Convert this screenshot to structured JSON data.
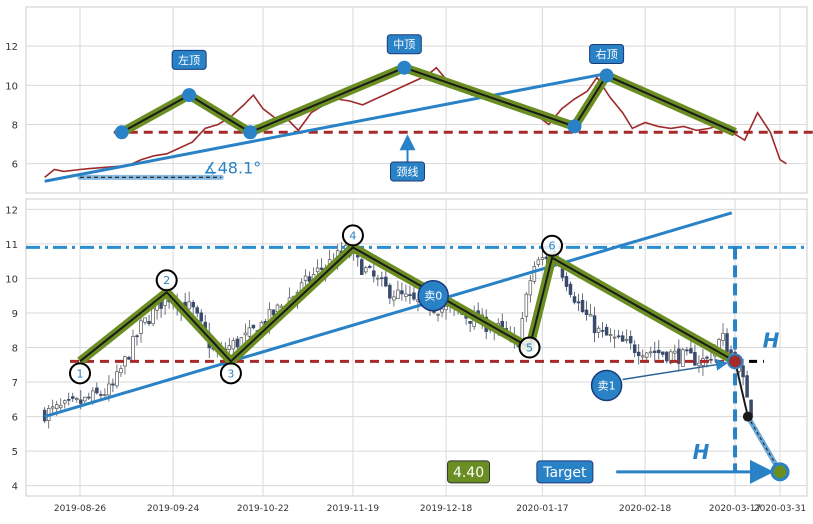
{
  "chart_data": [
    {
      "type": "line",
      "ylim": [
        4.5,
        14
      ],
      "yticks": [
        6,
        8,
        10,
        12
      ],
      "grid": true,
      "close_series": [
        [
          "2019-08-15",
          5.3
        ],
        [
          "2019-08-18",
          5.7
        ],
        [
          "2019-08-21",
          5.6
        ],
        [
          "2019-08-26",
          5.7
        ],
        [
          "2019-08-29",
          5.75
        ],
        [
          "2019-09-02",
          5.8
        ],
        [
          "2019-09-06",
          5.85
        ],
        [
          "2019-09-10",
          5.9
        ],
        [
          "2019-09-14",
          6.2
        ],
        [
          "2019-09-18",
          6.4
        ],
        [
          "2019-09-22",
          6.5
        ],
        [
          "2019-09-26",
          6.8
        ],
        [
          "2019-09-30",
          7.1
        ],
        [
          "2019-10-04",
          7.8
        ],
        [
          "2019-10-08",
          8.0
        ],
        [
          "2019-10-12",
          8.4
        ],
        [
          "2019-10-16",
          9.0
        ],
        [
          "2019-10-19",
          9.5
        ],
        [
          "2019-10-22",
          8.8
        ],
        [
          "2019-10-26",
          8.3
        ],
        [
          "2019-10-30",
          8.2
        ],
        [
          "2019-11-02",
          7.7
        ],
        [
          "2019-11-06",
          8.6
        ],
        [
          "2019-11-10",
          9.0
        ],
        [
          "2019-11-14",
          9.3
        ],
        [
          "2019-11-18",
          9.2
        ],
        [
          "2019-11-22",
          9.0
        ],
        [
          "2019-11-26",
          9.3
        ],
        [
          "2019-11-30",
          9.6
        ],
        [
          "2019-12-04",
          9.9
        ],
        [
          "2019-12-08",
          10.2
        ],
        [
          "2019-12-12",
          10.5
        ],
        [
          "2019-12-15",
          10.9
        ],
        [
          "2019-12-18",
          10.3
        ],
        [
          "2019-12-22",
          10.0
        ],
        [
          "2019-12-26",
          9.5
        ],
        [
          "2019-12-30",
          9.4
        ],
        [
          "2020-01-03",
          9.3
        ],
        [
          "2020-01-07",
          9.2
        ],
        [
          "2020-01-11",
          8.9
        ],
        [
          "2020-01-15",
          8.5
        ],
        [
          "2020-01-19",
          8.0
        ],
        [
          "2020-01-23",
          8.8
        ],
        [
          "2020-01-27",
          9.3
        ],
        [
          "2020-01-31",
          9.7
        ],
        [
          "2020-02-03",
          10.4
        ],
        [
          "2020-02-07",
          9.4
        ],
        [
          "2020-02-11",
          8.6
        ],
        [
          "2020-02-14",
          7.8
        ],
        [
          "2020-02-18",
          8.1
        ],
        [
          "2020-02-22",
          7.9
        ],
        [
          "2020-02-26",
          7.8
        ],
        [
          "2020-03-01",
          7.9
        ],
        [
          "2020-03-05",
          7.7
        ],
        [
          "2020-03-09",
          7.8
        ],
        [
          "2020-03-13",
          8.0
        ],
        [
          "2020-03-16",
          7.6
        ],
        [
          "2020-03-20",
          7.2
        ],
        [
          "2020-03-24",
          8.6
        ],
        [
          "2020-03-28",
          7.6
        ],
        [
          "2020-03-31",
          6.2
        ],
        [
          "2020-04-02",
          6.0
        ]
      ],
      "pattern_points": [
        [
          "2019-09-08",
          7.6
        ],
        [
          "2019-09-29",
          9.5
        ],
        [
          "2019-10-18",
          7.6
        ],
        [
          "2019-12-05",
          10.9
        ],
        [
          "2020-01-27",
          7.9
        ],
        [
          "2020-02-06",
          10.5
        ],
        [
          "2020-03-17",
          7.6
        ]
      ],
      "neckline": {
        "y": 7.6,
        "x0": "2019-09-08",
        "x1": "2020-03-17"
      },
      "trendline": {
        "x0": "2019-08-15",
        "y0": 5.1,
        "x1": "2020-02-06",
        "y1": 10.6
      },
      "dashed_segment": {
        "x0": "2019-08-26",
        "x1": "2019-10-09",
        "y": 5.3
      },
      "labels": {
        "left": {
          "text": "左顶",
          "x": "2019-09-29",
          "y": 11.3
        },
        "middle": {
          "text": "中顶",
          "x": "2019-12-05",
          "y": 12.1
        },
        "right": {
          "text": "右顶",
          "x": "2020-02-06",
          "y": 11.6
        },
        "neck": {
          "text": "颈线",
          "x": "2019-12-06",
          "y": 5.6
        }
      },
      "angle_label": "∡48.1°"
    },
    {
      "type": "candlestick",
      "ylim": [
        3.7,
        12.3
      ],
      "yticks": [
        4,
        5,
        6,
        7,
        8,
        9,
        10,
        11,
        12
      ],
      "grid": true,
      "x_ticks": [
        "2019-08-26",
        "2019-09-24",
        "2019-10-22",
        "2019-11-19",
        "2019-12-18",
        "2020-01-17",
        "2020-02-18",
        "2020-03-17",
        "2020-03-31"
      ],
      "candle_anchors": [
        [
          "2019-08-15",
          6.1
        ],
        [
          "2019-08-26",
          6.4
        ],
        [
          "2019-09-05",
          6.8
        ],
        [
          "2019-09-14",
          8.6
        ],
        [
          "2019-09-22",
          9.5
        ],
        [
          "2019-09-30",
          9.1
        ],
        [
          "2019-10-07",
          7.8
        ],
        [
          "2019-10-17",
          8.3
        ],
        [
          "2019-10-29",
          9.3
        ],
        [
          "2019-11-08",
          10.2
        ],
        [
          "2019-11-17",
          10.8
        ],
        [
          "2019-11-21",
          10.4
        ],
        [
          "2019-11-29",
          9.7
        ],
        [
          "2019-12-08",
          9.3
        ],
        [
          "2019-12-14",
          9.2
        ],
        [
          "2019-12-22",
          9.0
        ],
        [
          "2020-01-04",
          8.5
        ],
        [
          "2020-01-09",
          8.0
        ],
        [
          "2020-01-14",
          10.3
        ],
        [
          "2020-01-20",
          10.8
        ],
        [
          "2020-01-29",
          9.1
        ],
        [
          "2020-02-04",
          8.4
        ],
        [
          "2020-02-14",
          8.0
        ],
        [
          "2020-02-26",
          7.8
        ],
        [
          "2020-03-08",
          7.6
        ],
        [
          "2020-03-13",
          8.3
        ],
        [
          "2020-03-17",
          7.6
        ],
        [
          "2020-03-21",
          6.6
        ],
        [
          "2020-03-22",
          6.2
        ]
      ],
      "pattern_points": [
        {
          "label": "1",
          "x": "2019-08-26",
          "y": 7.6
        },
        {
          "label": "2",
          "x": "2019-09-22",
          "y": 9.6
        },
        {
          "label": "3",
          "x": "2019-10-12",
          "y": 7.6
        },
        {
          "label": "4",
          "x": "2019-11-19",
          "y": 10.9
        },
        {
          "label": "5",
          "x": "2020-01-13",
          "y": 8.0
        },
        {
          "label": "6",
          "x": "2020-01-20",
          "y": 10.6
        },
        {
          "label": "",
          "x": "2020-03-17",
          "y": 7.6
        }
      ],
      "neckline": {
        "y": 7.6,
        "x0": "2019-08-26",
        "x1": "2020-03-17"
      },
      "black_neck_extension": {
        "x0": "2020-03-17",
        "x1": "2020-03-26",
        "y": 7.6
      },
      "resistance": {
        "y": 10.9
      },
      "trendline": {
        "x0": "2019-08-15",
        "y0": 6.0,
        "x1": "2020-03-16",
        "y1": 11.9
      },
      "breakdown": {
        "x_cross": "2020-03-17",
        "x_mid": "2020-03-21",
        "y_mid": 6.0,
        "x_target": "2020-03-31",
        "y_target": 4.4
      },
      "H_label": "H",
      "sell0": "卖0",
      "sell1": "卖1",
      "target_label": "Target",
      "target_value": "4.40"
    }
  ]
}
